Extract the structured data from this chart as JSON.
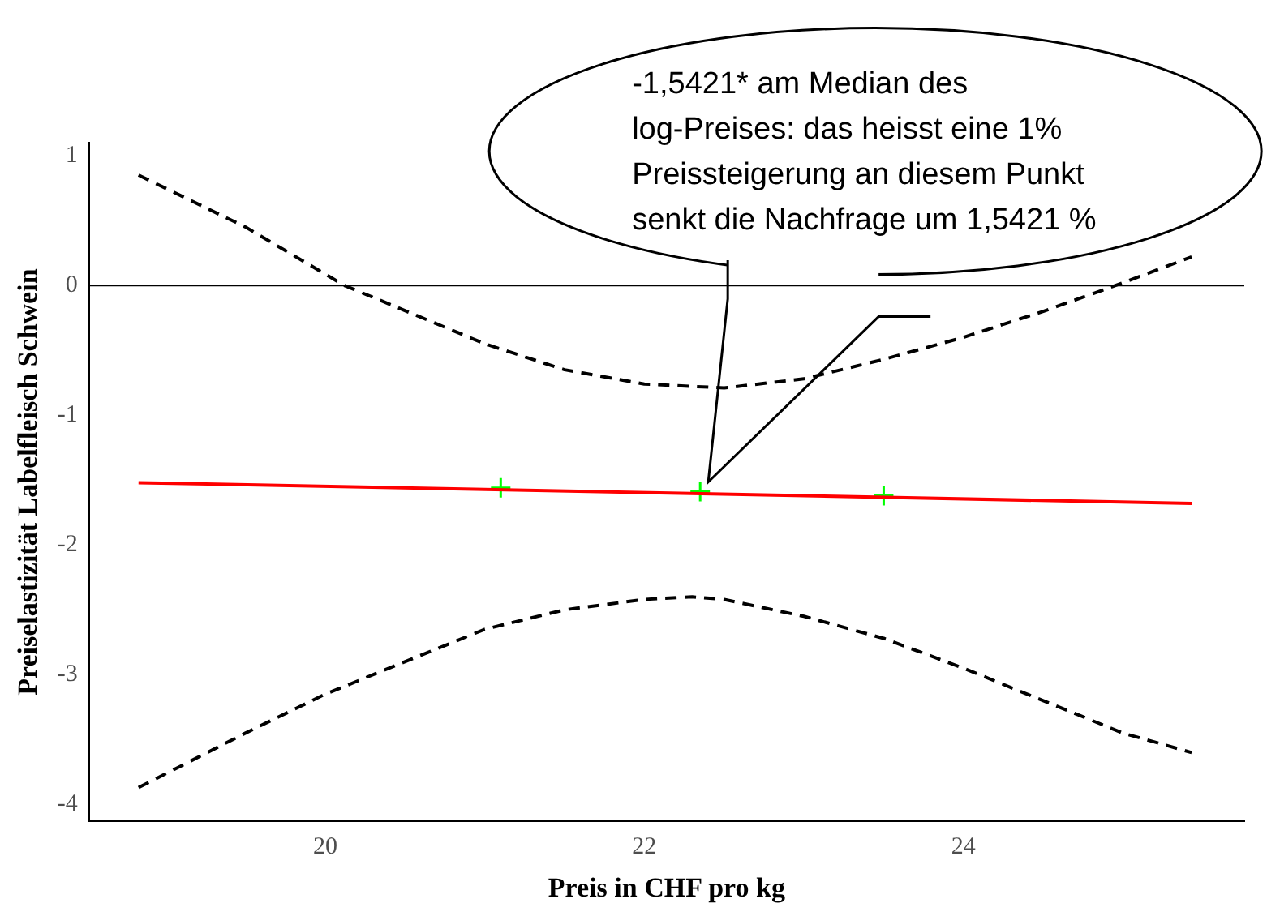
{
  "chart_data": {
    "type": "line",
    "xlabel": "Preis in CHF pro kg",
    "ylabel": "Preiselastizität Labelfleisch Schwein",
    "xlim": [
      18.52,
      25.76
    ],
    "ylim": [
      -4.13,
      1.1
    ],
    "xticks": [
      20,
      22,
      24
    ],
    "yticks": [
      -4,
      -3,
      -2,
      -1,
      0,
      1
    ],
    "grid": false,
    "legend": false,
    "series": [
      {
        "color": "#ff0000",
        "line_style": "solid",
        "x": [
          18.83,
          25.43
        ],
        "values": [
          -1.52,
          -1.68
        ]
      },
      {
        "color": "#000000",
        "line_style": "dashed",
        "x": [
          18.83,
          19.5,
          20.12,
          21,
          21.5,
          22,
          22.5,
          23,
          23.5,
          24,
          24.5,
          25,
          25.43
        ],
        "values": [
          0.85,
          0.45,
          0,
          -0.45,
          -0.65,
          -0.76,
          -0.79,
          -0.72,
          -0.57,
          -0.4,
          -0.2,
          0.02,
          0.22
        ]
      },
      {
        "color": "#000000",
        "line_style": "dashed",
        "x": [
          18.83,
          19.5,
          20,
          21,
          21.5,
          22,
          22.3,
          22.5,
          23,
          23.5,
          24,
          24.5,
          25,
          25.43
        ],
        "values": [
          -3.87,
          -3.45,
          -3.15,
          -2.65,
          -2.5,
          -2.42,
          -2.4,
          -2.42,
          -2.55,
          -2.72,
          -2.95,
          -3.2,
          -3.45,
          -3.6
        ]
      },
      {
        "type": "scatter",
        "color": "#00ff00",
        "marker": "cross",
        "x": [
          21.1,
          22.35,
          23.5
        ],
        "values": [
          -1.56,
          -1.59,
          -1.62
        ]
      }
    ],
    "ref_lines": [
      {
        "axis": "y",
        "value": 0,
        "color": "#000000",
        "line_style": "solid"
      }
    ],
    "annotations": [
      "-1,5421* am Median des log-Preises: das heisst eine 1% Preissteigerung an diesem Punkt senkt die Nachfrage um 1,5421 %"
    ]
  }
}
